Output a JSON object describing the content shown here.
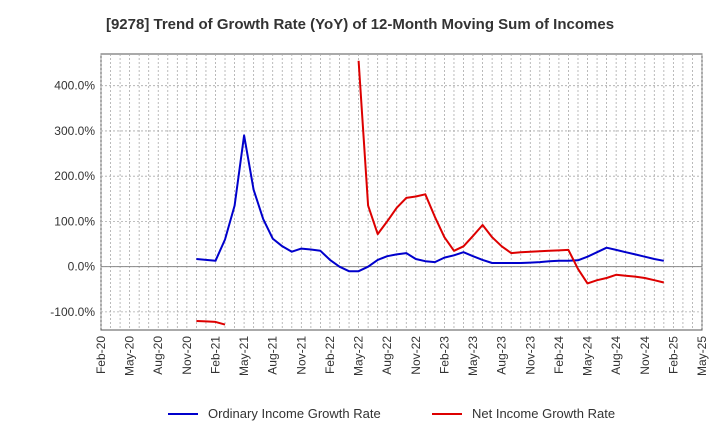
{
  "chart_data": {
    "type": "line",
    "title": "[9278]  Trend of Growth Rate (YoY) of 12-Month Moving Sum of Incomes",
    "xlabel": "",
    "ylabel": "",
    "x_categories": [
      "Feb-20",
      "Mar-20",
      "Apr-20",
      "May-20",
      "Jun-20",
      "Jul-20",
      "Aug-20",
      "Sep-20",
      "Oct-20",
      "Nov-20",
      "Dec-20",
      "Jan-21",
      "Feb-21",
      "Mar-21",
      "Apr-21",
      "May-21",
      "Jun-21",
      "Jul-21",
      "Aug-21",
      "Sep-21",
      "Oct-21",
      "Nov-21",
      "Dec-21",
      "Jan-22",
      "Feb-22",
      "Mar-22",
      "Apr-22",
      "May-22",
      "Jun-22",
      "Jul-22",
      "Aug-22",
      "Sep-22",
      "Oct-22",
      "Nov-22",
      "Dec-22",
      "Jan-23",
      "Feb-23",
      "Mar-23",
      "Apr-23",
      "May-23",
      "Jun-23",
      "Jul-23",
      "Aug-23",
      "Sep-23",
      "Oct-23",
      "Nov-23",
      "Dec-23",
      "Jan-24",
      "Feb-24",
      "Mar-24",
      "Apr-24",
      "May-24",
      "Jun-24",
      "Jul-24",
      "Aug-24",
      "Sep-24",
      "Oct-24",
      "Nov-24",
      "Dec-24",
      "Jan-25",
      "Feb-25",
      "Mar-25",
      "Apr-25",
      "May-25"
    ],
    "x_tick_labels": [
      "Feb-20",
      "May-20",
      "Aug-20",
      "Nov-20",
      "Feb-21",
      "May-21",
      "Aug-21",
      "Nov-21",
      "Feb-22",
      "May-22",
      "Aug-22",
      "Nov-22",
      "Feb-23",
      "May-23",
      "Aug-23",
      "Nov-23",
      "Feb-24",
      "May-24",
      "Aug-24",
      "Nov-24",
      "Feb-25",
      "May-25"
    ],
    "y_ticks": [
      -100,
      0,
      100,
      200,
      300,
      400
    ],
    "y_tick_labels": [
      "-100.0%",
      "0.0%",
      "100.0%",
      "200.0%",
      "300.0%",
      "400.0%"
    ],
    "ylim": [
      -140,
      470
    ],
    "grid": true,
    "legend_position": "bottom",
    "series": [
      {
        "name": "Ordinary Income Growth Rate",
        "color": "#0000cc",
        "values": [
          null,
          null,
          null,
          null,
          null,
          null,
          null,
          null,
          null,
          null,
          17,
          15,
          13,
          60,
          135,
          290,
          170,
          105,
          62,
          45,
          33,
          40,
          38,
          35,
          15,
          0,
          -10,
          -10,
          0,
          15,
          23,
          27,
          30,
          17,
          12,
          10,
          20,
          25,
          32,
          23,
          15,
          8,
          8,
          8,
          8,
          9,
          10,
          12,
          13,
          13,
          14,
          22,
          32,
          42,
          37,
          32,
          27,
          22,
          17,
          13,
          null,
          null,
          null,
          null
        ]
      },
      {
        "name": "Net Income Growth Rate",
        "color": "#dd0000",
        "values": [
          null,
          null,
          null,
          null,
          null,
          null,
          null,
          null,
          null,
          null,
          -120,
          -121,
          -122,
          -128,
          null,
          null,
          null,
          null,
          null,
          null,
          null,
          null,
          null,
          null,
          null,
          null,
          null,
          455,
          135,
          72,
          100,
          130,
          152,
          155,
          160,
          110,
          65,
          35,
          45,
          68,
          92,
          65,
          45,
          30,
          32,
          33,
          34,
          35,
          36,
          37,
          -5,
          -37,
          -30,
          -25,
          -18,
          -20,
          -22,
          -25,
          -30,
          -35,
          null,
          null,
          null,
          null
        ]
      }
    ]
  }
}
